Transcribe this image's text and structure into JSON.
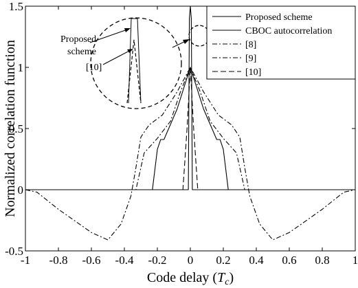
{
  "chart_data": {
    "type": "line",
    "xlabel": "Code delay",
    "xlabel_unit": "T",
    "xlabel_unit_sub": "c",
    "ylabel": "Normalized correlation function",
    "xlim": [
      -1,
      1
    ],
    "ylim": [
      -0.5,
      1.5
    ],
    "xticks": [
      -1,
      -0.8,
      -0.6,
      -0.4,
      -0.2,
      0,
      0.2,
      0.4,
      0.6,
      0.8,
      1
    ],
    "xtick_labels": [
      "-1",
      "-0.8",
      "-0.6",
      "-0.4",
      "-0.2",
      "0",
      "0.2",
      "0.4",
      "0.6",
      "0.8",
      "1"
    ],
    "yticks": [
      -0.5,
      0,
      0.5,
      1,
      1.5
    ],
    "ytick_labels": [
      "-0.5",
      "0",
      "0.5",
      "1",
      "1.5"
    ],
    "grid": false,
    "legend_position": "top-right",
    "series": [
      {
        "name": "Proposed scheme",
        "style": "solid",
        "color": "#000000",
        "x": [
          -1,
          -0.012,
          -0.006,
          0,
          0.006,
          0.012,
          1
        ],
        "y": [
          0,
          0,
          1.4,
          1.5,
          1.4,
          0,
          0
        ]
      },
      {
        "name": "CBOC autocorrelation",
        "style": "solid",
        "color": "#000000",
        "x": [
          -1,
          -0.23,
          -0.2,
          -0.18,
          -0.16,
          -0.08,
          0,
          0.08,
          0.16,
          0.18,
          0.2,
          0.23,
          1
        ],
        "y": [
          0,
          0,
          0.33,
          0.41,
          0.41,
          0.66,
          1.0,
          0.66,
          0.41,
          0.41,
          0.33,
          0,
          0
        ]
      },
      {
        "name": "[8]",
        "style": "dashdot",
        "color": "#000000",
        "x": [
          -1,
          -0.93,
          -0.8,
          -0.6,
          -0.5,
          -0.42,
          -0.36,
          -0.33,
          -0.3,
          -0.25,
          -0.17,
          -0.08,
          0,
          0.08,
          0.17,
          0.25,
          0.3,
          0.33,
          0.36,
          0.42,
          0.5,
          0.6,
          0.8,
          0.93,
          1
        ],
        "y": [
          0,
          -0.02,
          -0.16,
          -0.35,
          -0.41,
          -0.28,
          -0.05,
          0.18,
          0.43,
          0.53,
          0.61,
          0.8,
          1.0,
          0.8,
          0.61,
          0.53,
          0.43,
          0.18,
          -0.05,
          -0.28,
          -0.41,
          -0.35,
          -0.16,
          -0.02,
          0
        ]
      },
      {
        "name": "[9]",
        "style": "dashdot",
        "color": "#000000",
        "x": [
          -1,
          -0.33,
          -0.28,
          -0.2,
          -0.12,
          -0.06,
          0,
          0.06,
          0.12,
          0.2,
          0.28,
          0.33,
          1
        ],
        "y": [
          0,
          0,
          0.3,
          0.42,
          0.56,
          0.8,
          1.0,
          0.8,
          0.56,
          0.42,
          0.3,
          0,
          0
        ]
      },
      {
        "name": "[10]",
        "style": "dashed",
        "color": "#000000",
        "x": [
          -1,
          -0.045,
          -0.02,
          0,
          0.02,
          0.045,
          1
        ],
        "y": [
          0,
          0,
          0.5,
          1.0,
          0.5,
          0,
          0
        ]
      }
    ],
    "annotations": {
      "proposed_line1": "Proposed",
      "proposed_line2": "scheme",
      "ref10": "[10]"
    }
  }
}
